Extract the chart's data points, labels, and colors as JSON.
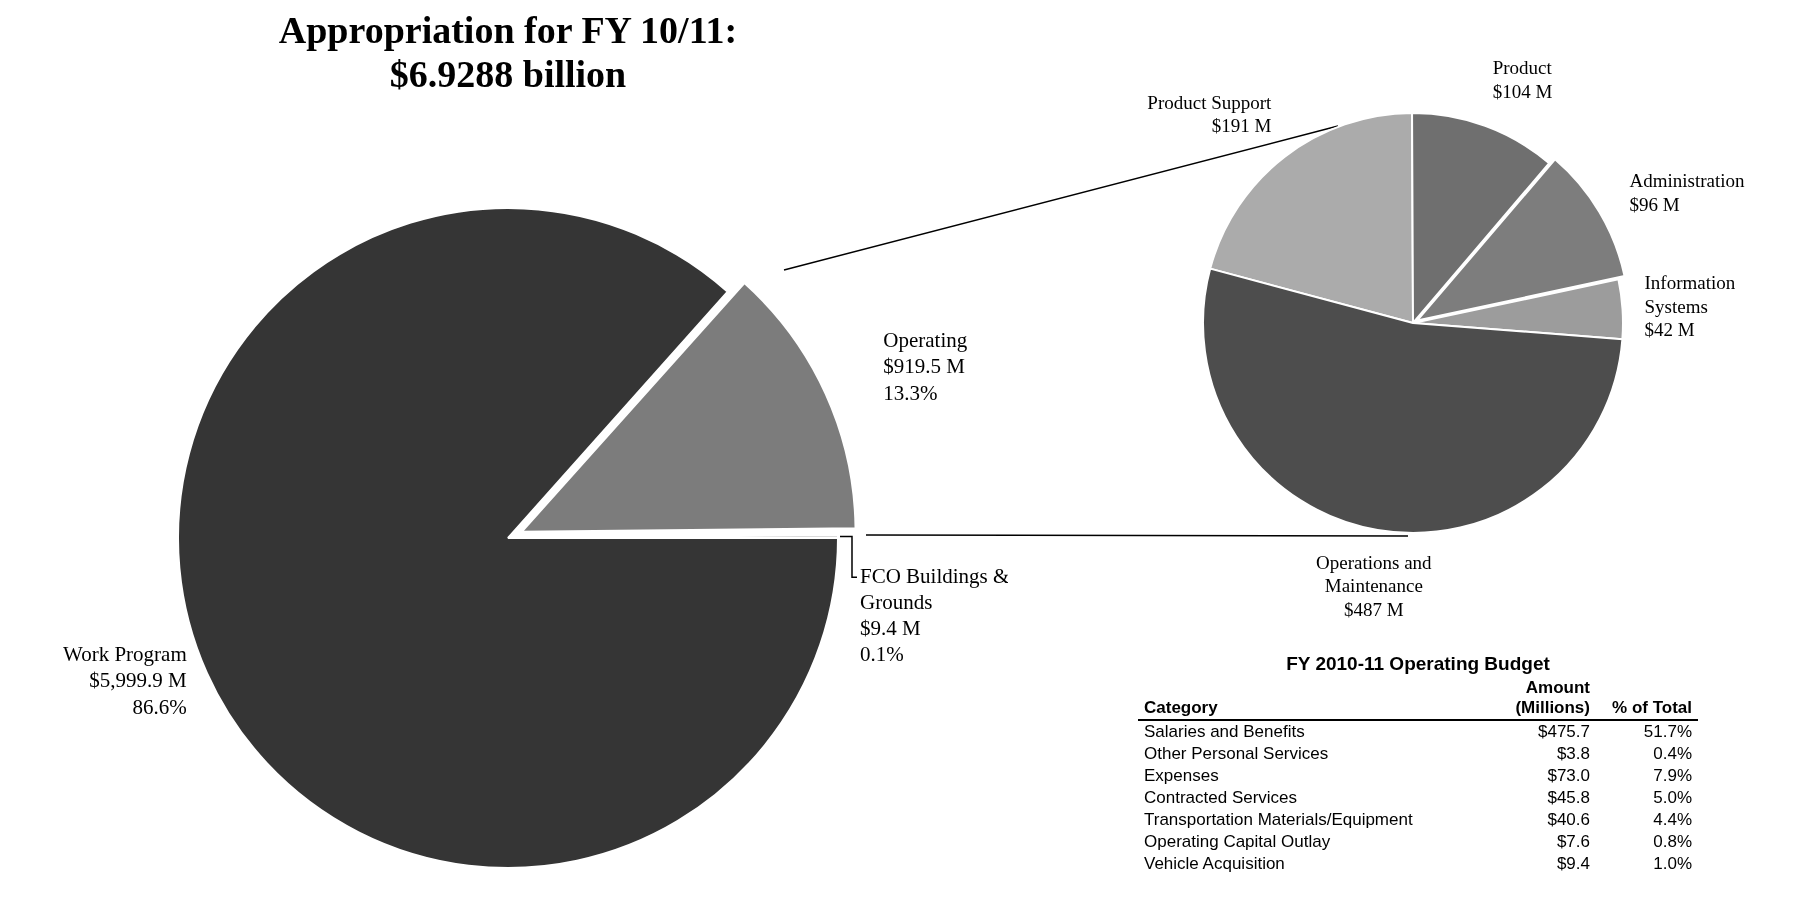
{
  "chart_data": [
    {
      "type": "pie",
      "title": "Appropriation for FY 10/11:",
      "subtitle": "$6.9288 billion",
      "categories": [
        "Work Program",
        "Operating",
        "FCO Buildings & Grounds"
      ],
      "values": [
        5999.9,
        919.5,
        9.4
      ],
      "colors": [
        "#353535",
        "#7c7c7c",
        "#b4b4b4"
      ],
      "value_labels": [
        "$5,999.9 M\n86.6%",
        "$919.5 M\n13.3%",
        "$9.4 M\n0.1%"
      ]
    },
    {
      "type": "pie",
      "categories": [
        "Product Support",
        "Product",
        "Administration",
        "Information Systems",
        "Operations and Maintenance"
      ],
      "values": [
        191,
        104,
        96,
        42,
        487
      ],
      "colors": [
        "#ababab",
        "#6f6f6f",
        "#7d7d7d",
        "#9c9c9c",
        "#4d4d4d"
      ],
      "value_labels": [
        "$191 M",
        "$104 M",
        "$96 M",
        "$42 M",
        "$487 M"
      ]
    },
    {
      "type": "other",
      "title": "FY 2010-11 Operating Budget",
      "xlabel": "Category",
      "categories": [
        "Salaries and Benefits",
        "Other Personal Services",
        "Expenses",
        "Contracted Services",
        "Transportation Materials/Equipment",
        "Operating Capital Outlay",
        "Vehicle Acquisition"
      ],
      "series": [
        {
          "name": "Amount (Millions)",
          "values": [
            475.7,
            3.8,
            73.0,
            45.8,
            40.6,
            7.6,
            9.4
          ],
          "value_labels": [
            "$475.7",
            "$3.8",
            "$73.0",
            "$45.8",
            "$40.6",
            "$7.6",
            "$9.4"
          ]
        },
        {
          "name": "% of Total",
          "values": [
            51.7,
            0.4,
            7.9,
            5.0,
            4.4,
            0.8,
            1.0
          ],
          "value_labels": [
            "51.7%",
            "0.4%",
            "7.9%",
            "5.0%",
            "4.4%",
            "0.8%",
            "1.0%"
          ]
        }
      ]
    }
  ]
}
